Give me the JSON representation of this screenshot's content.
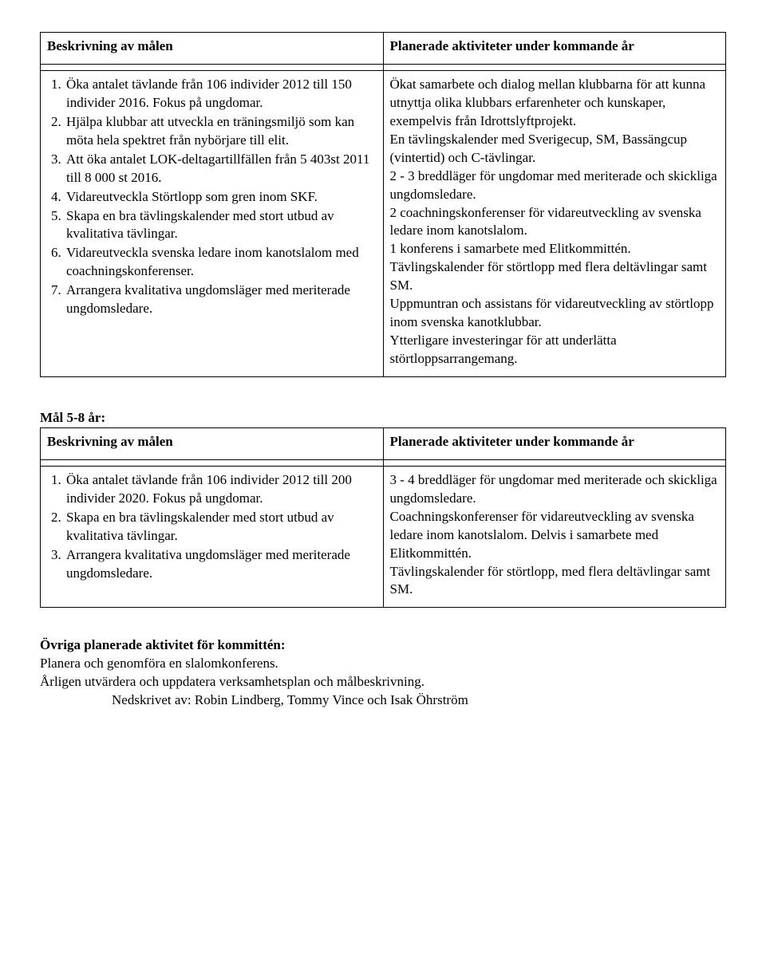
{
  "table1": {
    "h_left": "Beskrivning av målen",
    "h_right": "Planerade aktiviteter under kommande år",
    "goals": [
      "Öka antalet tävlande från 106 individer 2012 till 150 individer 2016. Fokus på ungdomar.",
      "Hjälpa klubbar att utveckla en träningsmiljö som kan möta hela spektret från nybörjare till elit.",
      "Att öka antalet LOK-deltagartillfällen från 5 403st 2011 till 8 000 st 2016.",
      "Vidareutveckla Störtlopp som gren inom SKF.",
      "Skapa en bra tävlingskalender med stort utbud av kvalitativa tävlingar.",
      "Vidareutveckla svenska ledare inom kanotslalom med coachningskonferenser.",
      "Arrangera kvalitativa ungdomsläger med meriterade ungdomsledare."
    ],
    "activities": [
      "Ökat samarbete och dialog mellan klubbarna för att kunna utnyttja olika klubbars erfarenheter och kunskaper, exempelvis från Idrottslyftprojekt.",
      "En tävlingskalender med Sverigecup, SM, Bassängcup (vintertid) och C-tävlingar.",
      "2 - 3 breddläger för ungdomar med meriterade och skickliga ungdomsledare.",
      "2 coachningskonferenser för vidareutveckling av svenska ledare inom kanotslalom.",
      "1 konferens i samarbete med Elitkommittén.",
      "Tävlingskalender för störtlopp med flera deltävlingar samt SM.",
      "Uppmuntran och assistans för vidareutveckling av störtlopp inom svenska kanotklubbar.",
      "Ytterligare investeringar för att underlätta störtloppsarrangemang."
    ]
  },
  "section2_label": "Mål 5-8 år:",
  "table2": {
    "h_left": "Beskrivning av målen",
    "h_right": "Planerade aktiviteter under kommande år",
    "goals": [
      "Öka antalet tävlande från 106 individer 2012 till 200 individer 2020. Fokus på ungdomar.",
      "Skapa en bra tävlingskalender med stort utbud av kvalitativa tävlingar.",
      "Arrangera kvalitativa ungdomsläger med meriterade ungdomsledare."
    ],
    "activities": [
      "3 - 4 breddläger för ungdomar med meriterade och skickliga ungdomsledare.",
      "Coachningskonferenser för vidareutveckling av svenska ledare inom kanotslalom. Delvis i samarbete med Elitkommittén.",
      "Tävlingskalender för störtlopp, med flera deltävlingar samt SM."
    ]
  },
  "closing": {
    "title": "Övriga planerade aktivitet för kommittén:",
    "line1": "Planera och genomföra en slalomkonferens.",
    "line2": "Årligen utvärdera och uppdatera verksamhetsplan och målbeskrivning.",
    "line3": "Nedskrivet av: Robin Lindberg, Tommy Vince och Isak Öhrström"
  }
}
